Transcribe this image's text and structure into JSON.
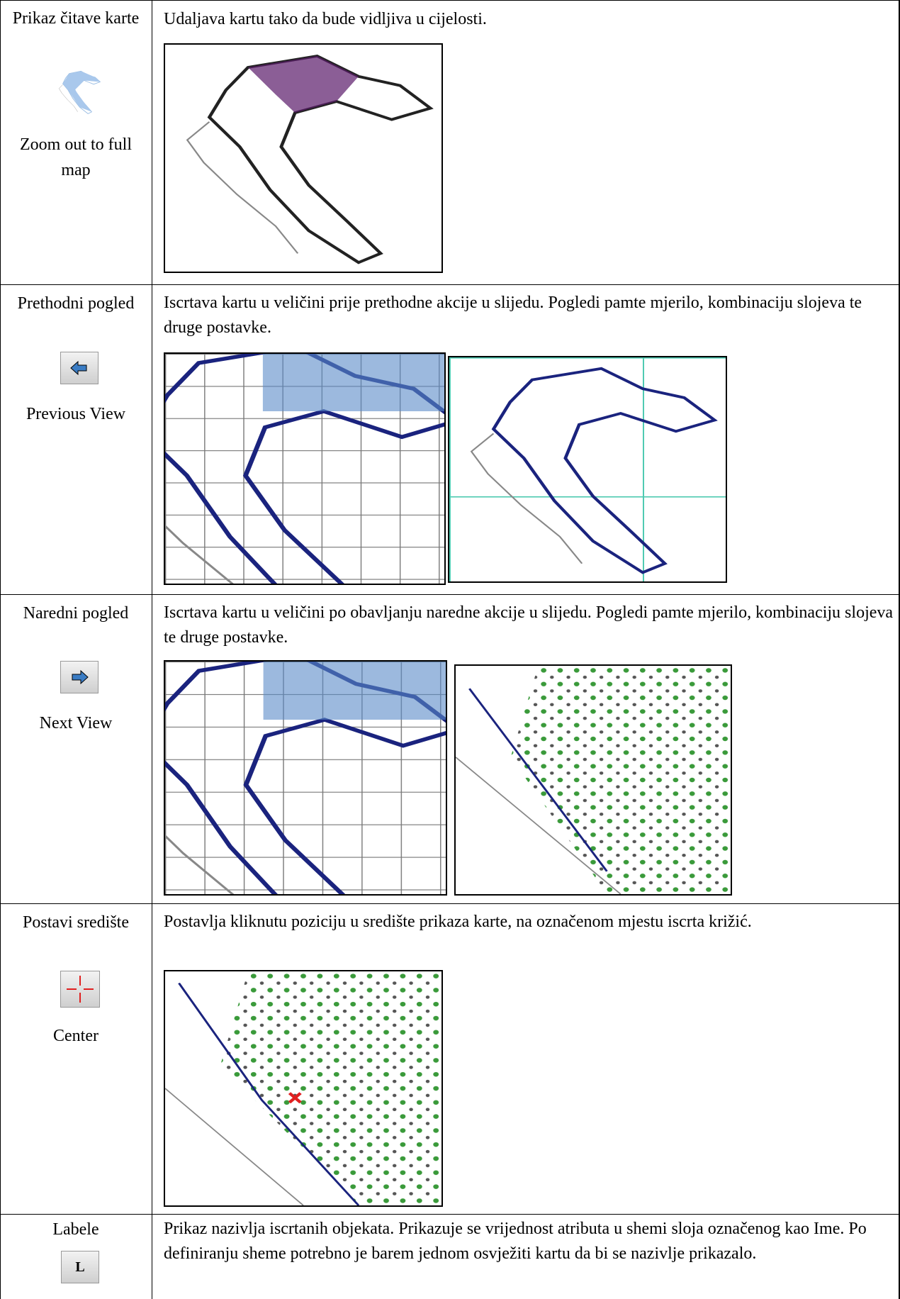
{
  "table": {
    "rows": [
      {
        "label": "Prikaz čitave karte",
        "label_en": "Zoom out to full map",
        "description": "Udaljava kartu tako da bude vidljiva u cijelosti."
      },
      {
        "label": "Prethodni pogled",
        "label_en": "Previous View",
        "description": "Iscrtava kartu u veličini prije prethodne akcije u slijedu. Pogledi pamte mjerilo, kombinaciju slojeva te druge postavke."
      },
      {
        "label": "Naredni pogled",
        "label_en": "Next View",
        "description": "Iscrtava kartu u veličini po obavljanju naredne akcije u slijedu. Pogledi pamte mjerilo, kombinaciju slojeva te druge postavke."
      },
      {
        "label": "Postavi središte",
        "label_en": "Center",
        "description": "Postavlja kliknutu poziciju u središte prikaza karte, na označenom mjestu iscrta križić."
      },
      {
        "label": "Labele",
        "icon_text": "L",
        "description": "Prikaz nazivlja iscrtanih objekata. Prikazuje se vrijednost atributa u shemi sloja označenog kao Ime. Po definiranju sheme potrebno je barem jednom osvježiti kartu da bi se nazivlje prikazalo."
      }
    ]
  }
}
